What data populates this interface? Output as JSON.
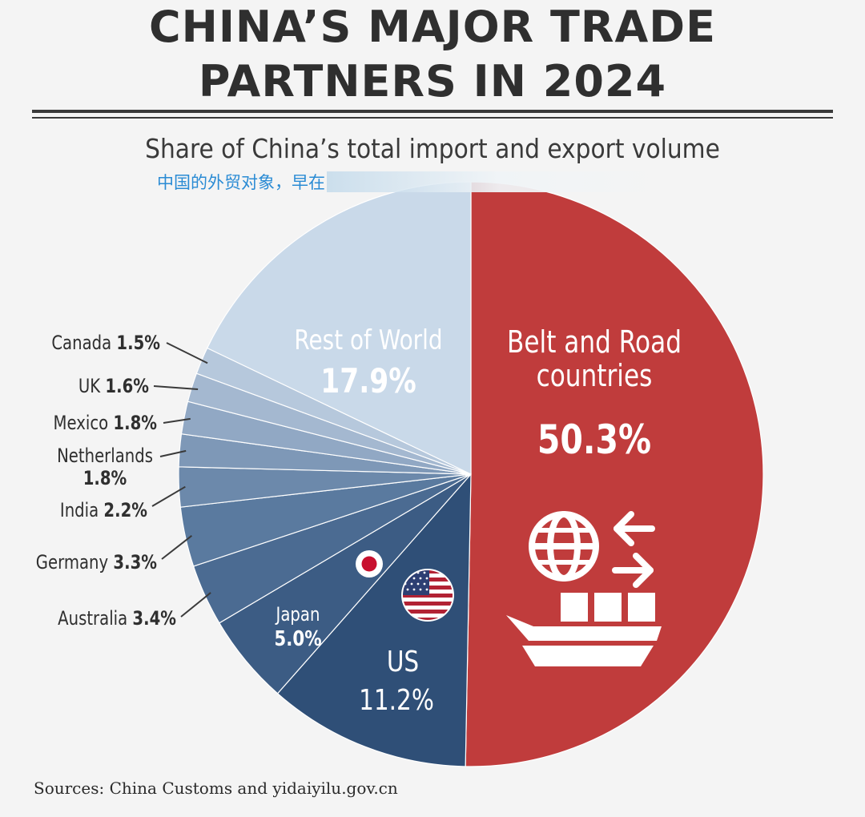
{
  "title_line1": "CHINA’S MAJOR TRADE",
  "title_line2": "PARTNERS IN 2024",
  "subtitle": "Share of China’s total import and export volume",
  "overlay_text": "中国的外贸对象，早在",
  "source": "Sources: China Customs and yidaiyilu.gov.cn",
  "colors": {
    "belt_road": "#c03c3c",
    "us": "#2f4f77",
    "japan": "#3c5c84",
    "rest_of_world": "#c9d9e9",
    "leader": "#3a3a3a"
  },
  "icons": [
    "globe-icon",
    "arrows-icon",
    "cargo-ship-icon",
    "us-flag-icon",
    "japan-flag-icon"
  ],
  "chart_data": {
    "type": "pie",
    "title": "CHINA’S MAJOR TRADE PARTNERS IN 2024",
    "subtitle": "Share of China’s total import and export volume",
    "unit": "%",
    "slices": [
      {
        "name": "Belt and Road countries",
        "value": 50.3,
        "label": "50.3%",
        "color": "#c03c3c"
      },
      {
        "name": "US",
        "value": 11.2,
        "label": "11.2%",
        "color": "#2f4f77"
      },
      {
        "name": "Japan",
        "value": 5.0,
        "label": "5.0%",
        "color": "#3c5c84"
      },
      {
        "name": "Australia",
        "value": 3.4,
        "label": "3.4%",
        "color": "#4b6b92"
      },
      {
        "name": "Germany",
        "value": 3.3,
        "label": "3.3%",
        "color": "#5a7a9f"
      },
      {
        "name": "India",
        "value": 2.2,
        "label": "2.2%",
        "color": "#6c89ab"
      },
      {
        "name": "Netherlands",
        "value": 1.8,
        "label": "1.8%",
        "color": "#7e98b7"
      },
      {
        "name": "Mexico",
        "value": 1.8,
        "label": "1.8%",
        "color": "#91a8c4"
      },
      {
        "name": "UK",
        "value": 1.6,
        "label": "1.6%",
        "color": "#a4b8d0"
      },
      {
        "name": "Canada",
        "value": 1.5,
        "label": "1.5%",
        "color": "#b6c8dc"
      },
      {
        "name": "Rest of World",
        "value": 17.9,
        "label": "17.9%",
        "color": "#c9d9e9"
      }
    ]
  }
}
